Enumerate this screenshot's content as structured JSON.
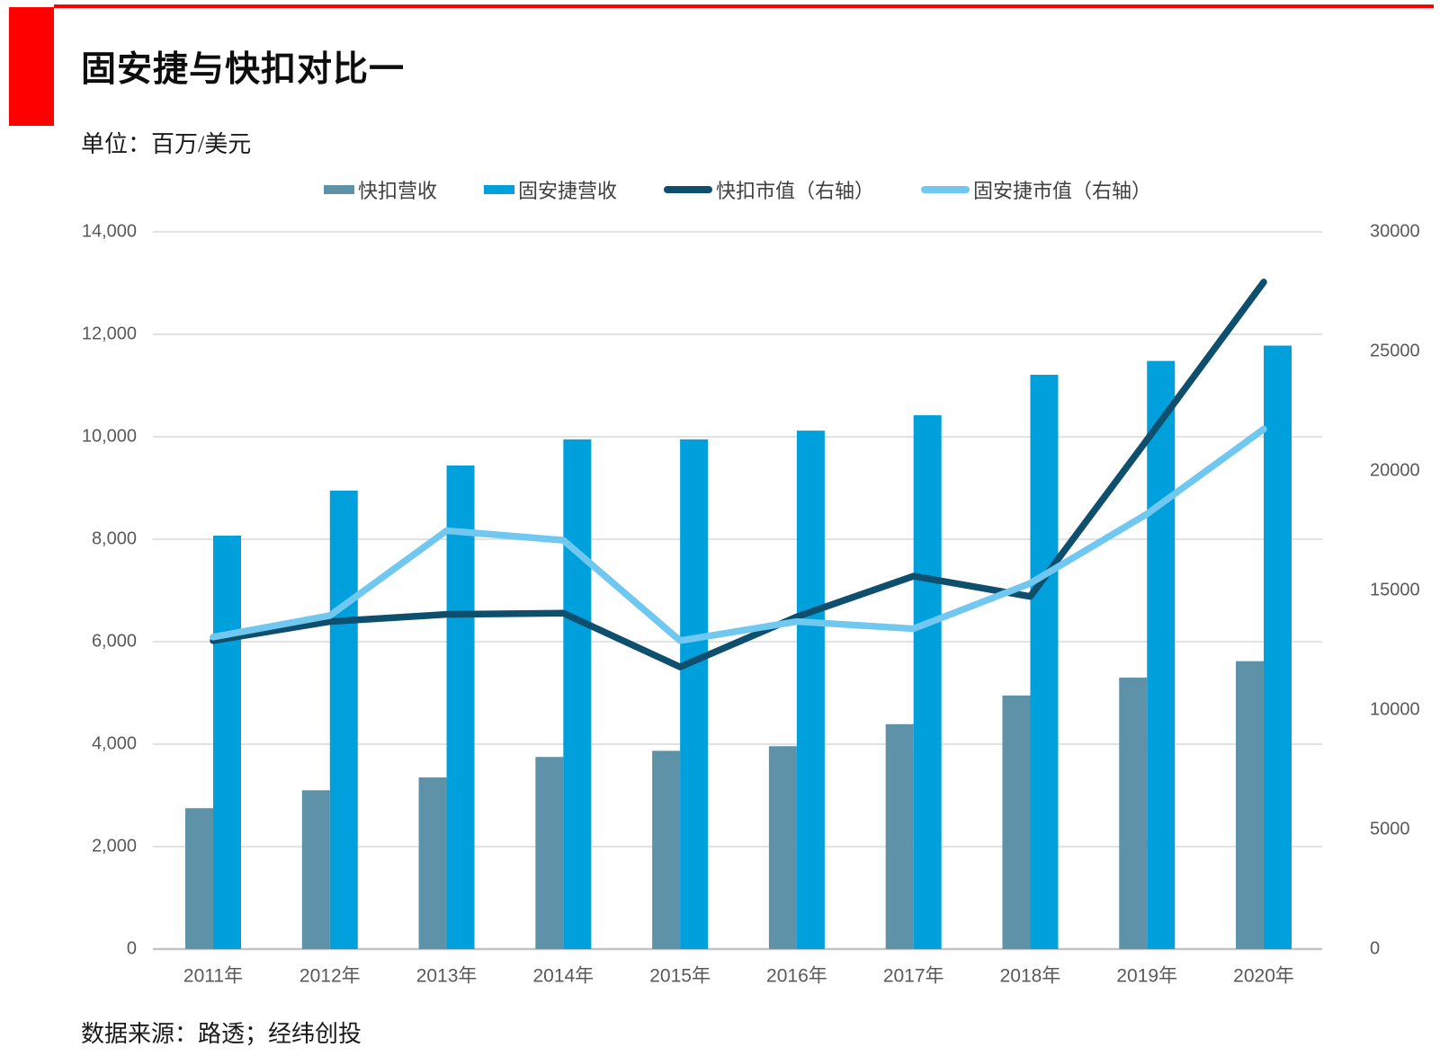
{
  "page": {
    "title": "固安捷与快扣对比一",
    "unit_label": "单位：百万/美元",
    "source_label": "数据来源：路透；经纬创投"
  },
  "colors": {
    "accent_red": "#fe0000",
    "bar_fastenal_revenue": "#5e92a8",
    "bar_grainger_revenue": "#00a0dc",
    "line_fastenal_marketcap": "#0d4f6d",
    "line_grainger_marketcap": "#70c8f0",
    "gridline": "#d9d9d9",
    "axis_baseline": "#c4c4c4",
    "axis_text": "#595959",
    "legend_text": "#404040"
  },
  "chart_data": {
    "type": "combo",
    "title": "固安捷与快扣对比一",
    "unit": "百万/美元",
    "categories": [
      "2011年",
      "2012年",
      "2013年",
      "2014年",
      "2015年",
      "2016年",
      "2017年",
      "2018年",
      "2019年",
      "2020年"
    ],
    "series": [
      {
        "name": "快扣营收",
        "type": "bar",
        "axis": "left",
        "color": "#5e92a8",
        "values": [
          2750,
          3100,
          3350,
          3750,
          3870,
          3960,
          4390,
          4950,
          5300,
          5620
        ]
      },
      {
        "name": "固安捷营收",
        "type": "bar",
        "axis": "left",
        "color": "#00a0dc",
        "values": [
          8070,
          8950,
          9440,
          9950,
          9950,
          10120,
          10420,
          11210,
          11480,
          11780
        ]
      },
      {
        "name": "快扣市值（右轴）",
        "type": "line",
        "axis": "right",
        "color": "#0d4f6d",
        "values": [
          12900,
          13700,
          14000,
          14050,
          11800,
          13900,
          15600,
          14750,
          21300,
          27900
        ]
      },
      {
        "name": "固安捷市值（右轴）",
        "type": "line",
        "axis": "right",
        "color": "#70c8f0",
        "values": [
          13050,
          13950,
          17500,
          17100,
          12900,
          13700,
          13400,
          15300,
          18200,
          21750
        ]
      }
    ],
    "left_axis": {
      "min": 0,
      "max": 14000,
      "tick_step": 2000,
      "tick_values": [
        0,
        2000,
        4000,
        6000,
        8000,
        10000,
        12000,
        14000
      ],
      "tick_labels": [
        "0",
        "2,000",
        "4,000",
        "6,000",
        "8,000",
        "10,000",
        "12,000",
        "14,000"
      ]
    },
    "right_axis": {
      "min": 0,
      "max": 30000,
      "tick_step": 5000,
      "tick_values": [
        0,
        5000,
        10000,
        15000,
        20000,
        25000,
        30000
      ],
      "tick_labels": [
        "0",
        "5000",
        "10000",
        "15000",
        "20000",
        "25000",
        "30000"
      ]
    },
    "grid": "horizontal",
    "legend_position": "top",
    "source": "数据来源：路透；经纬创投"
  }
}
